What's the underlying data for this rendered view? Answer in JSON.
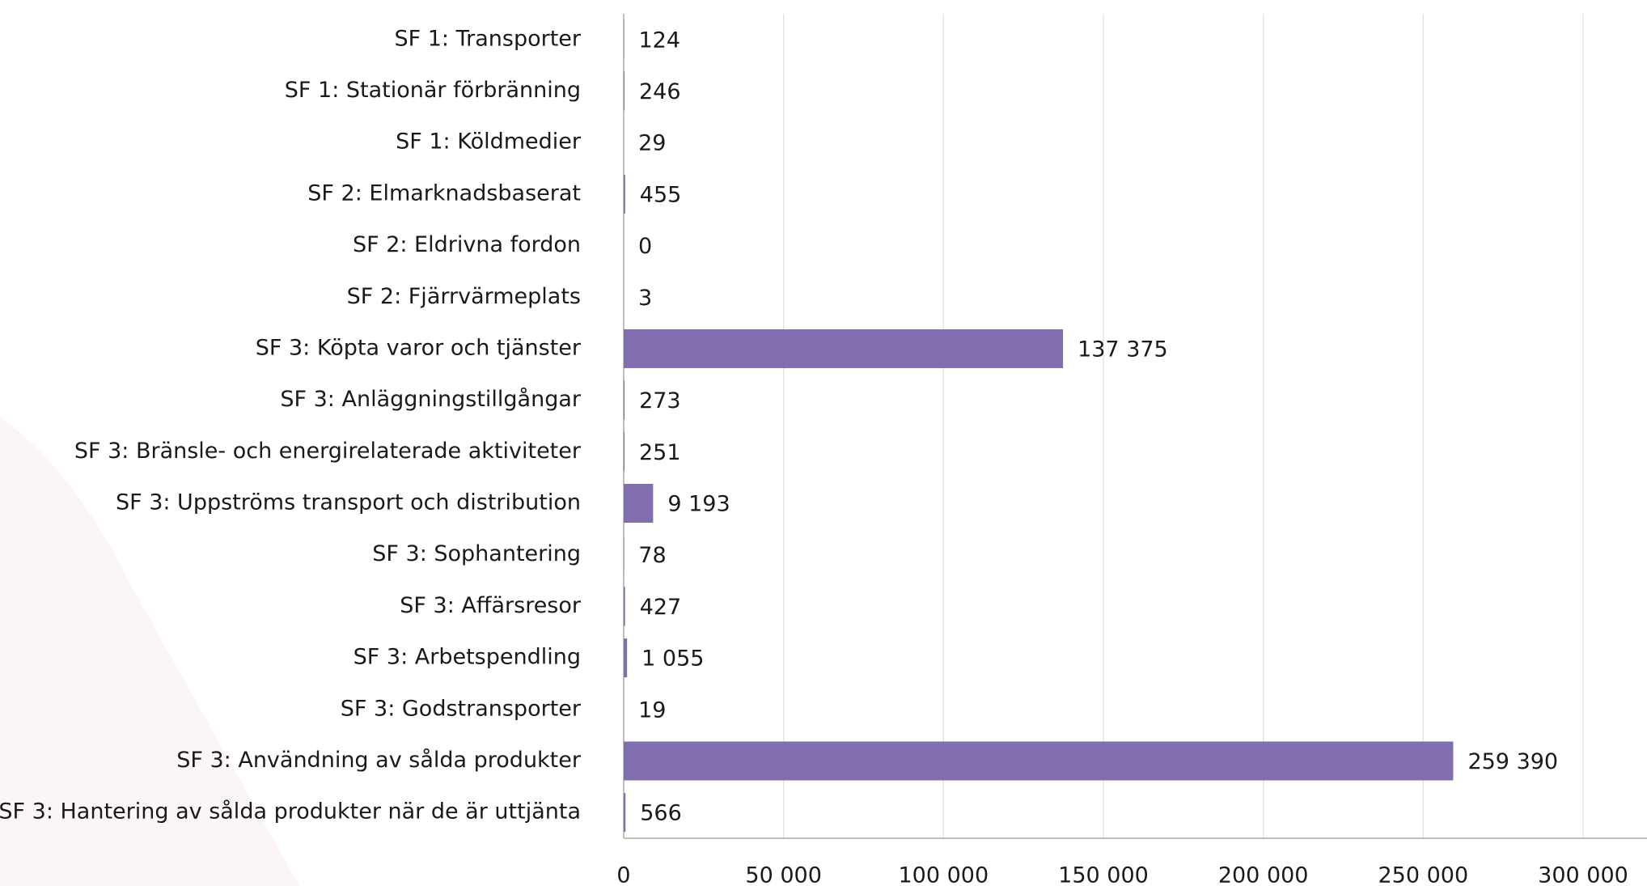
{
  "chart_data": {
    "type": "hbar",
    "categories": [
      "SF 1: Transporter",
      "SF 1: Stationär förbränning",
      "SF 1: Köldmedier",
      "SF 2: Elmarknadsbaserat",
      "SF 2: Eldrivna fordon",
      "SF 2: Fjärrvärmeplats",
      "SF 3: Köpta varor och tjänster",
      "SF 3: Anläggningstillgångar",
      "SF 3: Bränsle- och energirelaterade aktiviteter",
      "SF 3: Uppströms transport och distribution",
      "SF 3: Sophantering",
      "SF 3: Affärsresor",
      "SF 3: Arbetspendling",
      "SF 3: Godstransporter",
      "SF 3: Användning av sålda produkter",
      "SF 3: Hantering av sålda produkter när de är uttjänta"
    ],
    "values": [
      124,
      246,
      29,
      455,
      0,
      3,
      137375,
      273,
      251,
      9193,
      78,
      427,
      1055,
      19,
      259390,
      566
    ],
    "value_labels": [
      "124",
      "246",
      "29",
      "455",
      "0",
      "3",
      "137 375",
      "273",
      "251",
      "9 193",
      "78",
      "427",
      "1 055",
      "19",
      "259 390",
      "566"
    ],
    "color": "#806eae",
    "xlim": [
      0,
      300000
    ],
    "xticks": [
      0,
      {
        "value": 50000,
        "label": "50 000"
      },
      {
        "value": 100000,
        "label": "100 000"
      },
      {
        "value": 150000,
        "label": "150 000"
      },
      {
        "value": 200000,
        "label": "200 000"
      },
      {
        "value": 250000,
        "label": "250 000"
      },
      {
        "value": 300000,
        "label": "300 000"
      }
    ],
    "grid": true
  }
}
